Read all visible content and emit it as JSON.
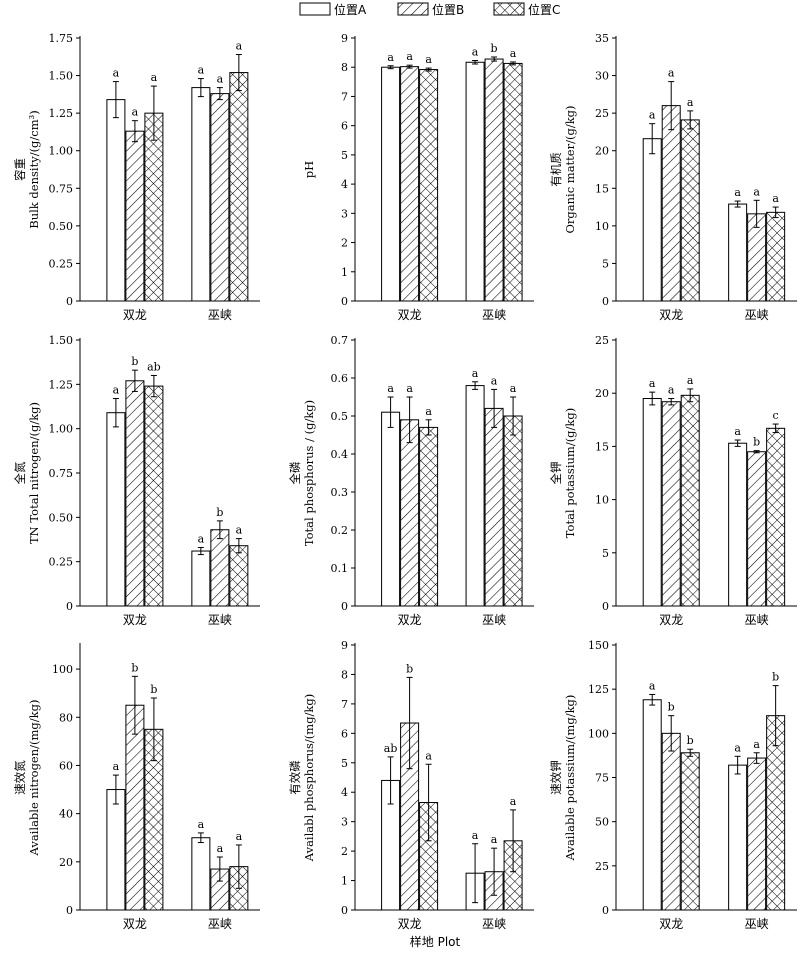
{
  "legend": {
    "entries": [
      {
        "name": "位置A",
        "pattern": "empty"
      },
      {
        "name": "位置B",
        "pattern": "hatch"
      },
      {
        "name": "位置C",
        "pattern": "cross"
      }
    ]
  },
  "xlabel": "样地 Plot",
  "chart_data": [
    {
      "type": "bar",
      "ylabel_cn": "容重",
      "ylabel_en": "Bulk density/(g/cm³)",
      "ylim": [
        0,
        1.75
      ],
      "yticks": [
        "0",
        "0.25",
        "0.50",
        "0.75",
        "1.00",
        "1.25",
        "1.50",
        "1.75"
      ],
      "ytick_values": [
        0,
        0.25,
        0.5,
        0.75,
        1.0,
        1.25,
        1.5,
        1.75
      ],
      "categories": [
        "双龙",
        "巫峡"
      ],
      "series": [
        {
          "name": "位置A",
          "values": [
            1.34,
            1.42
          ],
          "errors": [
            0.12,
            0.06
          ],
          "labels": [
            "a",
            "a"
          ]
        },
        {
          "name": "位置B",
          "values": [
            1.13,
            1.38
          ],
          "errors": [
            0.07,
            0.04
          ],
          "labels": [
            "a",
            "a"
          ]
        },
        {
          "name": "位置C",
          "values": [
            1.25,
            1.52
          ],
          "errors": [
            0.18,
            0.12
          ],
          "labels": [
            "a",
            "a"
          ]
        }
      ]
    },
    {
      "type": "bar",
      "ylabel_cn": "",
      "ylabel_en": "pH",
      "ylim": [
        0,
        9
      ],
      "yticks": [
        "0",
        "1",
        "2",
        "3",
        "4",
        "5",
        "6",
        "7",
        "8",
        "9"
      ],
      "ytick_values": [
        0,
        1,
        2,
        3,
        4,
        5,
        6,
        7,
        8,
        9
      ],
      "categories": [
        "双龙",
        "巫峡"
      ],
      "series": [
        {
          "name": "位置A",
          "values": [
            8.0,
            8.17
          ],
          "errors": [
            0.05,
            0.06
          ],
          "labels": [
            "a",
            "a"
          ]
        },
        {
          "name": "位置B",
          "values": [
            8.02,
            8.28
          ],
          "errors": [
            0.05,
            0.07
          ],
          "labels": [
            "a",
            "b"
          ]
        },
        {
          "name": "位置C",
          "values": [
            7.92,
            8.13
          ],
          "errors": [
            0.05,
            0.05
          ],
          "labels": [
            "a",
            "a"
          ]
        }
      ]
    },
    {
      "type": "bar",
      "ylabel_cn": "有机质",
      "ylabel_en": "Organic matter/(g/kg)",
      "ylim": [
        0,
        35
      ],
      "yticks": [
        "0",
        "5",
        "10",
        "15",
        "20",
        "25",
        "30",
        "35"
      ],
      "ytick_values": [
        0,
        5,
        10,
        15,
        20,
        25,
        30,
        35
      ],
      "categories": [
        "双龙",
        "巫峡"
      ],
      "series": [
        {
          "name": "位置A",
          "values": [
            21.6,
            12.9
          ],
          "errors": [
            2.0,
            0.4
          ],
          "labels": [
            "a",
            "a"
          ]
        },
        {
          "name": "位置B",
          "values": [
            26.0,
            11.6
          ],
          "errors": [
            3.2,
            1.8
          ],
          "labels": [
            "a",
            "a"
          ]
        },
        {
          "name": "位置C",
          "values": [
            24.1,
            11.8
          ],
          "errors": [
            1.2,
            0.7
          ],
          "labels": [
            "a",
            "a"
          ]
        }
      ]
    },
    {
      "type": "bar",
      "ylabel_cn": "全氮",
      "ylabel_en": "TN Total nitrogen/(g/kg)",
      "ylim": [
        0,
        1.5
      ],
      "yticks": [
        "0",
        "0.25",
        "0.50",
        "0.75",
        "1.00",
        "1.25",
        "1.50"
      ],
      "ytick_values": [
        0,
        0.25,
        0.5,
        0.75,
        1.0,
        1.25,
        1.5
      ],
      "categories": [
        "双龙",
        "巫峡"
      ],
      "series": [
        {
          "name": "位置A",
          "values": [
            1.09,
            0.31
          ],
          "errors": [
            0.08,
            0.02
          ],
          "labels": [
            "a",
            "a"
          ]
        },
        {
          "name": "位置B",
          "values": [
            1.27,
            0.43
          ],
          "errors": [
            0.06,
            0.05
          ],
          "labels": [
            "b",
            "b"
          ]
        },
        {
          "name": "位置C",
          "values": [
            1.24,
            0.34
          ],
          "errors": [
            0.06,
            0.04
          ],
          "labels": [
            "ab",
            "a"
          ]
        }
      ]
    },
    {
      "type": "bar",
      "ylabel_cn": "全磷",
      "ylabel_en": "Total phosphorus / (g/kg)",
      "ylim": [
        0,
        0.7
      ],
      "yticks": [
        "0",
        "0.1",
        "0.2",
        "0.3",
        "0.4",
        "0.5",
        "0.6",
        "0.7"
      ],
      "ytick_values": [
        0,
        0.1,
        0.2,
        0.3,
        0.4,
        0.5,
        0.6,
        0.7
      ],
      "categories": [
        "双龙",
        "巫峡"
      ],
      "series": [
        {
          "name": "位置A",
          "values": [
            0.51,
            0.58
          ],
          "errors": [
            0.04,
            0.01
          ],
          "labels": [
            "a",
            "a"
          ]
        },
        {
          "name": "位置B",
          "values": [
            0.49,
            0.52
          ],
          "errors": [
            0.06,
            0.05
          ],
          "labels": [
            "a",
            "a"
          ]
        },
        {
          "name": "位置C",
          "values": [
            0.47,
            0.5
          ],
          "errors": [
            0.02,
            0.05
          ],
          "labels": [
            "a",
            "a"
          ]
        }
      ]
    },
    {
      "type": "bar",
      "ylabel_cn": "全钾",
      "ylabel_en": "Total potassium/(g/kg)",
      "ylim": [
        0,
        25
      ],
      "yticks": [
        "0",
        "5",
        "10",
        "15",
        "20",
        "25"
      ],
      "ytick_values": [
        0,
        5,
        10,
        15,
        20,
        25
      ],
      "categories": [
        "双龙",
        "巫峡"
      ],
      "series": [
        {
          "name": "位置A",
          "values": [
            19.5,
            15.3
          ],
          "errors": [
            0.6,
            0.3
          ],
          "labels": [
            "a",
            "a"
          ]
        },
        {
          "name": "位置B",
          "values": [
            19.2,
            14.5
          ],
          "errors": [
            0.3,
            0.1
          ],
          "labels": [
            "a",
            "b"
          ]
        },
        {
          "name": "位置C",
          "values": [
            19.8,
            16.7
          ],
          "errors": [
            0.6,
            0.4
          ],
          "labels": [
            "a",
            "c"
          ]
        }
      ]
    },
    {
      "type": "bar",
      "ylabel_cn": "速效氮",
      "ylabel_en": "Available nitrogen/(mg/kg)",
      "ylim": [
        0,
        110
      ],
      "yticks": [
        "0",
        "20",
        "40",
        "60",
        "80",
        "100"
      ],
      "ytick_values": [
        0,
        20,
        40,
        60,
        80,
        100
      ],
      "categories": [
        "双龙",
        "巫峡"
      ],
      "series": [
        {
          "name": "位置A",
          "values": [
            50,
            30
          ],
          "errors": [
            6,
            2
          ],
          "labels": [
            "a",
            "a"
          ]
        },
        {
          "name": "位置B",
          "values": [
            85,
            17
          ],
          "errors": [
            12,
            5
          ],
          "labels": [
            "b",
            "a"
          ]
        },
        {
          "name": "位置C",
          "values": [
            75,
            18
          ],
          "errors": [
            13,
            9
          ],
          "labels": [
            "b",
            "a"
          ]
        }
      ]
    },
    {
      "type": "bar",
      "ylabel_cn": "有效磷",
      "ylabel_en": "Availabl phosphorus/(mg/kg)",
      "ylim": [
        0,
        9
      ],
      "yticks": [
        "0",
        "1",
        "2",
        "3",
        "4",
        "5",
        "6",
        "7",
        "8",
        "9"
      ],
      "ytick_values": [
        0,
        1,
        2,
        3,
        4,
        5,
        6,
        7,
        8,
        9
      ],
      "categories": [
        "双龙",
        "巫峡"
      ],
      "series": [
        {
          "name": "位置A",
          "values": [
            4.4,
            1.25
          ],
          "errors": [
            0.8,
            1.0
          ],
          "labels": [
            "ab",
            "a"
          ]
        },
        {
          "name": "位置B",
          "values": [
            6.35,
            1.3
          ],
          "errors": [
            1.55,
            0.8
          ],
          "labels": [
            "b",
            "a"
          ]
        },
        {
          "name": "位置C",
          "values": [
            3.65,
            2.35
          ],
          "errors": [
            1.3,
            1.05
          ],
          "labels": [
            "a",
            "a"
          ]
        }
      ]
    },
    {
      "type": "bar",
      "ylabel_cn": "速效钾",
      "ylabel_en": "Available potassium/(mg/kg)",
      "ylim": [
        0,
        150
      ],
      "yticks": [
        "0",
        "25",
        "50",
        "75",
        "100",
        "125",
        "150"
      ],
      "ytick_values": [
        0,
        25,
        50,
        75,
        100,
        125,
        150
      ],
      "categories": [
        "双龙",
        "巫峡"
      ],
      "series": [
        {
          "name": "位置A",
          "values": [
            119,
            82
          ],
          "errors": [
            3,
            5
          ],
          "labels": [
            "a",
            "a"
          ]
        },
        {
          "name": "位置B",
          "values": [
            100,
            86
          ],
          "errors": [
            10,
            3
          ],
          "labels": [
            "b",
            "a"
          ]
        },
        {
          "name": "位置C",
          "values": [
            89,
            110
          ],
          "errors": [
            2,
            17
          ],
          "labels": [
            "b",
            "b"
          ]
        }
      ]
    }
  ]
}
